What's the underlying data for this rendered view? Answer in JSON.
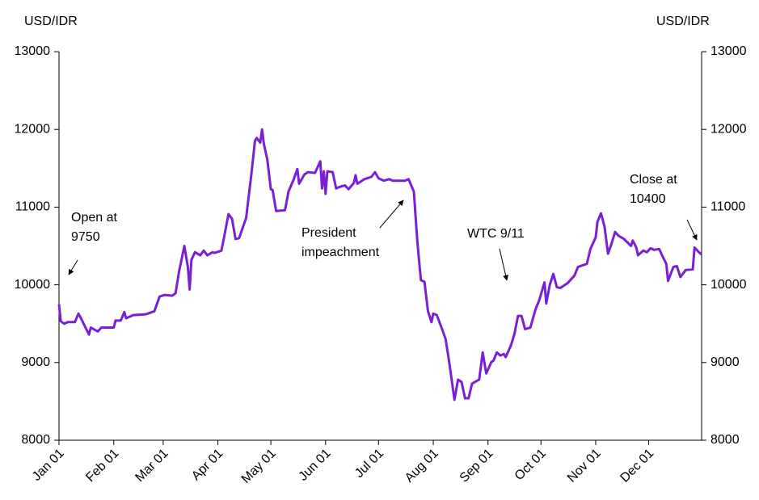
{
  "chart_data": {
    "type": "line",
    "y_axis_label": "USD/IDR",
    "y2_axis_label": "USD/IDR",
    "xlim": [
      0,
      364
    ],
    "xticks": [
      {
        "value": 0,
        "label": "Jan 01"
      },
      {
        "value": 31,
        "label": "Feb 01"
      },
      {
        "value": 59,
        "label": "Mar 01"
      },
      {
        "value": 90,
        "label": "Apr 01"
      },
      {
        "value": 120,
        "label": "May 01"
      },
      {
        "value": 151,
        "label": "Jun 01"
      },
      {
        "value": 181,
        "label": "Jul 01"
      },
      {
        "value": 212,
        "label": "Aug 01"
      },
      {
        "value": 243,
        "label": "Sep 01"
      },
      {
        "value": 273,
        "label": "Oct 01"
      },
      {
        "value": 304,
        "label": "Nov 01"
      },
      {
        "value": 334,
        "label": "Dec 01"
      }
    ],
    "ylim": [
      8000,
      13000
    ],
    "yticks": [
      8000,
      9000,
      10000,
      11000,
      12000,
      13000
    ],
    "y2lim": [
      8000,
      13000
    ],
    "y2ticks": [
      8000,
      9000,
      10000,
      11000,
      12000,
      13000
    ],
    "grid": false,
    "series": [
      {
        "name": "USD/IDR",
        "color": "#7a1fd6",
        "x": [
          0,
          1,
          3,
          5,
          9,
          11,
          12,
          15,
          17,
          18,
          22,
          24,
          31,
          32,
          35,
          37,
          38,
          42,
          49,
          54,
          57,
          60,
          64,
          66,
          68,
          71,
          73,
          74,
          75,
          77,
          80,
          82,
          84,
          87,
          88,
          92,
          94,
          96,
          98,
          100,
          102,
          104,
          106,
          109,
          111,
          112,
          114,
          115,
          116,
          118,
          120,
          121,
          123,
          128,
          130,
          133,
          135,
          136,
          139,
          141,
          145,
          147,
          148,
          149,
          150,
          151,
          152,
          155,
          157,
          159,
          162,
          164,
          167,
          168,
          169,
          173,
          177,
          179,
          181,
          184,
          187,
          189,
          196,
          198,
          201,
          203,
          205,
          207,
          209,
          211,
          212,
          214,
          217,
          219,
          221,
          224,
          226,
          228,
          230,
          232,
          234,
          238,
          240,
          242,
          245,
          246,
          248,
          250,
          252,
          253,
          256,
          258,
          260,
          262,
          264,
          267,
          270,
          272,
          275,
          276,
          278,
          280,
          282,
          284,
          288,
          292,
          294,
          299,
          301,
          304,
          305,
          307,
          309,
          311,
          313,
          315,
          317,
          320,
          324,
          325,
          327,
          328,
          331,
          333,
          335,
          337,
          340,
          342,
          344,
          345,
          348,
          350,
          352,
          355,
          359,
          360,
          362,
          364
        ],
        "values": [
          9750,
          9530,
          9500,
          9520,
          9520,
          9630,
          9590,
          9450,
          9360,
          9450,
          9400,
          9450,
          9450,
          9540,
          9540,
          9650,
          9570,
          9610,
          9620,
          9660,
          9850,
          9870,
          9860,
          9890,
          10170,
          10500,
          10230,
          9940,
          10320,
          10420,
          10380,
          10440,
          10380,
          10420,
          10410,
          10440,
          10670,
          10910,
          10850,
          10590,
          10600,
          10730,
          10860,
          11430,
          11850,
          11890,
          11830,
          12000,
          11820,
          11610,
          11230,
          11220,
          10950,
          10960,
          11200,
          11360,
          11490,
          11300,
          11420,
          11450,
          11440,
          11540,
          11590,
          11240,
          11460,
          11170,
          11460,
          11450,
          11240,
          11260,
          11280,
          11230,
          11310,
          11410,
          11300,
          11360,
          11390,
          11450,
          11370,
          11340,
          11360,
          11340,
          11340,
          11360,
          11200,
          10550,
          10060,
          10040,
          9660,
          9520,
          9630,
          9610,
          9430,
          9300,
          9010,
          8520,
          8780,
          8750,
          8540,
          8540,
          8730,
          8780,
          9130,
          8860,
          9010,
          9020,
          9130,
          9090,
          9110,
          9070,
          9220,
          9370,
          9600,
          9600,
          9430,
          9450,
          9690,
          9800,
          10030,
          9760,
          10000,
          10140,
          9970,
          9960,
          10020,
          10120,
          10230,
          10270,
          10460,
          10610,
          10810,
          10920,
          10750,
          10400,
          10530,
          10680,
          10630,
          10590,
          10500,
          10570,
          10480,
          10380,
          10440,
          10420,
          10470,
          10450,
          10460,
          10360,
          10270,
          10050,
          10230,
          10240,
          10100,
          10190,
          10200,
          10480,
          10430,
          10390
        ]
      }
    ],
    "annotations": [
      {
        "lines": [
          "Open at",
          "9750"
        ]
      },
      {
        "lines": [
          "President",
          "impeachment"
        ]
      },
      {
        "lines": [
          "WTC 9/11"
        ]
      },
      {
        "lines": [
          "Close at",
          "10400"
        ]
      }
    ]
  }
}
